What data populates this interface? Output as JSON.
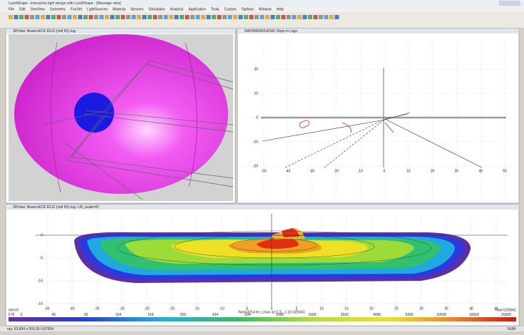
{
  "window": {
    "title": "LucidShape - Interactive light design with LucidShape - [Message view]"
  },
  "menu": [
    "File",
    "Edit",
    "GeoView",
    "Geometry",
    "FunSet",
    "LightSources",
    "Material",
    "Sensors",
    "Simulation",
    "Analysis",
    "Application",
    "Tools",
    "Custom",
    "Options",
    "Window",
    "Help"
  ],
  "panel_3d": {
    "title": "3DView: Beam+ECE R112 (vrdl H1).lug"
  },
  "panel_2d": {
    "title": "RAY0000402xDSD: Rays in Lsgn",
    "x_tick_labels": [
      "-50",
      "-40",
      "-30",
      "-20",
      "-10",
      "0",
      "10",
      "20",
      "30",
      "40",
      "50"
    ],
    "y_tick_labels": [
      "20",
      "10",
      "0",
      "-10",
      "-20"
    ]
  },
  "panel_contour": {
    "title": "2DView: Beam+ECE R112 (vrdl H1).lug: LID_scale=67",
    "x_tick_labels": [
      "-45",
      "-40",
      "-35",
      "-30",
      "-25",
      "-20",
      "-15",
      "-10",
      "-5",
      "0",
      "5",
      "10",
      "15",
      "20",
      "25",
      "30",
      "35",
      "40",
      "45"
    ],
    "y_tick_labels": [
      "0",
      "-5",
      "-10",
      "-15"
    ],
    "caption": "flum=3214 lm, Lmax at (1.5, -1.2)=325041",
    "min_label": "min=0",
    "max_label": "max=325041",
    "unit": "[cd]",
    "scale_labels": [
      "0",
      "45",
      "62",
      "104",
      "169",
      "259",
      "424",
      "604",
      "1000",
      "1600",
      "2500",
      "4000",
      "6300",
      "10000",
      "16000",
      "25000"
    ]
  },
  "status": {
    "text": "ray: 53.894 x 503.30 6.87924",
    "mode": "NUM"
  }
}
